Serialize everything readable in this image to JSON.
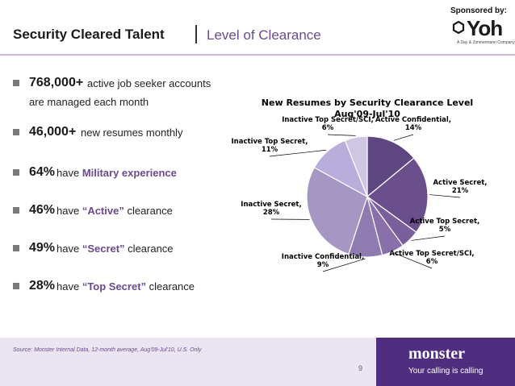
{
  "header": {
    "sponsor_label": "Sponsored by:",
    "sponsor_logo_text": "Yoh",
    "sponsor_logo_tagline": "A Day & Zimmermann Company",
    "title": "Security Cleared Talent",
    "subtitle": "Level of Clearance"
  },
  "bullets": [
    {
      "big": "768,000+",
      "rest": " active job seeker accounts",
      "cont": "are managed each month"
    },
    {
      "big": "46,000+",
      "rest": " new resumes monthly"
    },
    {
      "big": "64%",
      "rest": " have ",
      "highlight": "Military experience"
    },
    {
      "big": "46%",
      "rest": " have ",
      "highlight": "“Active”",
      "tail": " clearance"
    },
    {
      "big": "49%",
      "rest": " have ",
      "highlight": "“Secret”",
      "tail": " clearance"
    },
    {
      "big": "28%",
      "rest": " have ",
      "highlight": "“Top Secret”",
      "tail": " clearance"
    }
  ],
  "chart_data": {
    "type": "pie",
    "title": "New Resumes by Security Clearance Level",
    "subtitle": "Aug'09-Jul'10",
    "slices": [
      {
        "label": "Active Confidential, 14%",
        "value": 14,
        "color": "#5e4680"
      },
      {
        "label": "Active Secret, 21%",
        "value": 21,
        "color": "#6a4f8c"
      },
      {
        "label": "Active Top Secret, 5%",
        "value": 5,
        "color": "#7a5f9d"
      },
      {
        "label": "Active Top Secret/SCI, 6%",
        "value": 6,
        "color": "#8a70ab"
      },
      {
        "label": "Inactive Confidential, 9%",
        "value": 9,
        "color": "#8f7bb0"
      },
      {
        "label": "Inactive Secret, 28%",
        "value": 28,
        "color": "#a696c3"
      },
      {
        "label": "Inactive Top Secret, 11%",
        "value": 11,
        "color": "#b9addb"
      },
      {
        "label": "Inactive Top Secret/SCI, 6%",
        "value": 6,
        "color": "#cfc6e3"
      }
    ]
  },
  "footer": {
    "source": "Source:  Monster Internal Data, 12-month average, Aug'09-Jul'10, U.S. Only",
    "page_number": "9",
    "brand": "monster",
    "brand_tagline": "Your calling is calling"
  },
  "colors": {
    "accent": "#6b4a8e",
    "footer_bg": "#ebe5f1",
    "brand_bg": "#4f2d7f"
  }
}
